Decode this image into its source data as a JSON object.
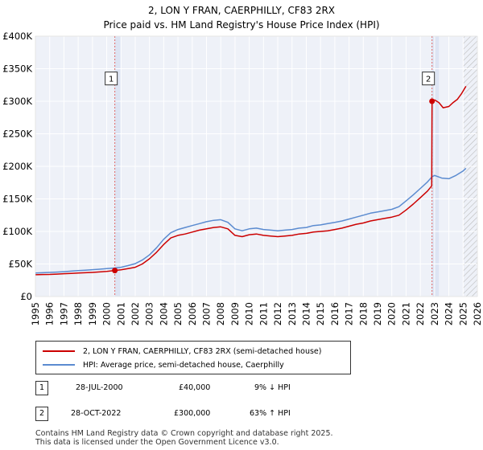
{
  "chart_data": {
    "type": "line",
    "title": "2, LON Y FRAN, CAERPHILLY, CF83 2RX",
    "subtitle": "Price paid vs. HM Land Registry's House Price Index (HPI)",
    "xlim": [
      1995,
      2026
    ],
    "ylim": [
      0,
      400000
    ],
    "x_ticks": [
      1995,
      1996,
      1997,
      1998,
      1999,
      2000,
      2001,
      2002,
      2003,
      2004,
      2005,
      2006,
      2007,
      2008,
      2009,
      2010,
      2011,
      2012,
      2013,
      2014,
      2015,
      2016,
      2017,
      2018,
      2019,
      2020,
      2021,
      2022,
      2023,
      2024,
      2025,
      2026
    ],
    "y_ticks": [
      {
        "value": 0,
        "label": "£0"
      },
      {
        "value": 50000,
        "label": "£50K"
      },
      {
        "value": 100000,
        "label": "£100K"
      },
      {
        "value": 150000,
        "label": "£150K"
      },
      {
        "value": 200000,
        "label": "£200K"
      },
      {
        "value": 250000,
        "label": "£250K"
      },
      {
        "value": 300000,
        "label": "£300K"
      },
      {
        "value": 350000,
        "label": "£350K"
      },
      {
        "value": 400000,
        "label": "£400K"
      }
    ],
    "grid": true,
    "shaded_regions": [
      {
        "from": 2000.57,
        "to": 2001.0,
        "label": "sale-1-period"
      },
      {
        "from": 2022.82,
        "to": 2023.3,
        "label": "sale-2-period"
      }
    ],
    "hatched_future_from": 2025.0,
    "series": [
      {
        "name": "2, LON Y FRAN, CAERPHILLY, CF83 2RX (semi-detached house)",
        "color": "#cc0000",
        "points": [
          [
            1995.0,
            33500
          ],
          [
            1995.5,
            33800
          ],
          [
            1996.0,
            34000
          ],
          [
            1996.5,
            34500
          ],
          [
            1997.0,
            35000
          ],
          [
            1997.5,
            35500
          ],
          [
            1998.0,
            36000
          ],
          [
            1998.5,
            36500
          ],
          [
            1999.0,
            37000
          ],
          [
            1999.5,
            37800
          ],
          [
            2000.0,
            38500
          ],
          [
            2000.57,
            40000
          ],
          [
            2001.0,
            41000
          ],
          [
            2001.5,
            43000
          ],
          [
            2002.0,
            45000
          ],
          [
            2002.5,
            50000
          ],
          [
            2003.0,
            58000
          ],
          [
            2003.5,
            68000
          ],
          [
            2004.0,
            80000
          ],
          [
            2004.5,
            90000
          ],
          [
            2005.0,
            94000
          ],
          [
            2005.5,
            96000
          ],
          [
            2006.0,
            99000
          ],
          [
            2006.5,
            102000
          ],
          [
            2007.0,
            104000
          ],
          [
            2007.5,
            106000
          ],
          [
            2008.0,
            107000
          ],
          [
            2008.5,
            104000
          ],
          [
            2009.0,
            94000
          ],
          [
            2009.5,
            92000
          ],
          [
            2010.0,
            95000
          ],
          [
            2010.5,
            96000
          ],
          [
            2011.0,
            94000
          ],
          [
            2011.5,
            93000
          ],
          [
            2012.0,
            92000
          ],
          [
            2012.5,
            93000
          ],
          [
            2013.0,
            94000
          ],
          [
            2013.5,
            96000
          ],
          [
            2014.0,
            97000
          ],
          [
            2014.5,
            99000
          ],
          [
            2015.0,
            100000
          ],
          [
            2015.5,
            101000
          ],
          [
            2016.0,
            103000
          ],
          [
            2016.5,
            105000
          ],
          [
            2017.0,
            108000
          ],
          [
            2017.5,
            111000
          ],
          [
            2018.0,
            113000
          ],
          [
            2018.5,
            116000
          ],
          [
            2019.0,
            118000
          ],
          [
            2019.5,
            120000
          ],
          [
            2020.0,
            122000
          ],
          [
            2020.5,
            125000
          ],
          [
            2021.0,
            133000
          ],
          [
            2021.5,
            142000
          ],
          [
            2022.0,
            152000
          ],
          [
            2022.5,
            162000
          ],
          [
            2022.8,
            170000
          ],
          [
            2022.82,
            300000
          ],
          [
            2023.0,
            302000
          ],
          [
            2023.3,
            298000
          ],
          [
            2023.6,
            290000
          ],
          [
            2024.0,
            292000
          ],
          [
            2024.3,
            298000
          ],
          [
            2024.6,
            303000
          ],
          [
            2024.9,
            312000
          ],
          [
            2025.2,
            323000
          ]
        ]
      },
      {
        "name": "HPI: Average price, semi-detached house, Caerphilly",
        "color": "#5b8bd0",
        "points": [
          [
            1995.0,
            36000
          ],
          [
            1995.5,
            36500
          ],
          [
            1996.0,
            37000
          ],
          [
            1996.5,
            37500
          ],
          [
            1997.0,
            38200
          ],
          [
            1997.5,
            39000
          ],
          [
            1998.0,
            39800
          ],
          [
            1998.5,
            40500
          ],
          [
            1999.0,
            41200
          ],
          [
            1999.5,
            42000
          ],
          [
            2000.0,
            42800
          ],
          [
            2000.57,
            43800
          ],
          [
            2001.0,
            45000
          ],
          [
            2001.5,
            47500
          ],
          [
            2002.0,
            50500
          ],
          [
            2002.5,
            56000
          ],
          [
            2003.0,
            64000
          ],
          [
            2003.5,
            75000
          ],
          [
            2004.0,
            88000
          ],
          [
            2004.5,
            98000
          ],
          [
            2005.0,
            103000
          ],
          [
            2005.5,
            106000
          ],
          [
            2006.0,
            109000
          ],
          [
            2006.5,
            112000
          ],
          [
            2007.0,
            115000
          ],
          [
            2007.5,
            117000
          ],
          [
            2008.0,
            118000
          ],
          [
            2008.5,
            114000
          ],
          [
            2009.0,
            104000
          ],
          [
            2009.5,
            101000
          ],
          [
            2010.0,
            104000
          ],
          [
            2010.5,
            105000
          ],
          [
            2011.0,
            103000
          ],
          [
            2011.5,
            102000
          ],
          [
            2012.0,
            101000
          ],
          [
            2012.5,
            102000
          ],
          [
            2013.0,
            103000
          ],
          [
            2013.5,
            105000
          ],
          [
            2014.0,
            106000
          ],
          [
            2014.5,
            109000
          ],
          [
            2015.0,
            110000
          ],
          [
            2015.5,
            112000
          ],
          [
            2016.0,
            114000
          ],
          [
            2016.5,
            116000
          ],
          [
            2017.0,
            119000
          ],
          [
            2017.5,
            122000
          ],
          [
            2018.0,
            125000
          ],
          [
            2018.5,
            128000
          ],
          [
            2019.0,
            130000
          ],
          [
            2019.5,
            132000
          ],
          [
            2020.0,
            134000
          ],
          [
            2020.5,
            138000
          ],
          [
            2021.0,
            147000
          ],
          [
            2021.5,
            156000
          ],
          [
            2022.0,
            166000
          ],
          [
            2022.5,
            176000
          ],
          [
            2022.82,
            184000
          ],
          [
            2023.0,
            186000
          ],
          [
            2023.5,
            182000
          ],
          [
            2024.0,
            181000
          ],
          [
            2024.5,
            186000
          ],
          [
            2025.0,
            193000
          ],
          [
            2025.2,
            197000
          ]
        ]
      }
    ],
    "sales": [
      {
        "number": "1",
        "date": "28-JUL-2000",
        "price": "£40,000",
        "hpi_delta": "9% ↓ HPI",
        "x": 2000.57,
        "y": 40000
      },
      {
        "number": "2",
        "date": "28-OCT-2022",
        "price": "£300,000",
        "hpi_delta": "63% ↑ HPI",
        "x": 2022.82,
        "y": 300000
      }
    ],
    "marker_label_y": 335000
  },
  "footer": {
    "line1": "Contains HM Land Registry data © Crown copyright and database right 2025.",
    "line2": "This data is licensed under the Open Government Licence v3.0."
  }
}
